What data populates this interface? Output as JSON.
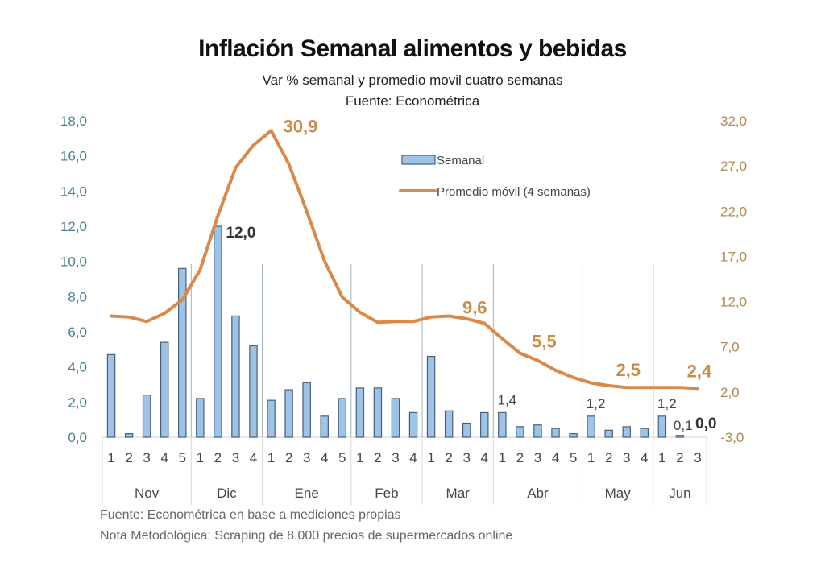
{
  "chart_data": {
    "type": "bar",
    "title": "Inflación Semanal alimentos y bebidas",
    "subtitle": "Var % semanal y promedio movil cuatro semanas",
    "source_line": "Fuente: Econométrica",
    "xlabel": "",
    "ylabel": "",
    "months": [
      {
        "name": "Nov",
        "weeks": [
          "1",
          "2",
          "3",
          "4",
          "5"
        ]
      },
      {
        "name": "Dic",
        "weeks": [
          "1",
          "2",
          "3",
          "4"
        ]
      },
      {
        "name": "Ene",
        "weeks": [
          "1",
          "2",
          "3",
          "4",
          "5"
        ]
      },
      {
        "name": "Feb",
        "weeks": [
          "1",
          "2",
          "3",
          "4"
        ]
      },
      {
        "name": "Mar",
        "weeks": [
          "1",
          "2",
          "3",
          "4"
        ]
      },
      {
        "name": "Abr",
        "weeks": [
          "1",
          "2",
          "3",
          "4",
          "5"
        ]
      },
      {
        "name": "May",
        "weeks": [
          "1",
          "2",
          "3",
          "4"
        ]
      },
      {
        "name": "Jun",
        "weeks": [
          "1",
          "2",
          "3"
        ]
      }
    ],
    "series": [
      {
        "name": "Semanal",
        "kind": "bar",
        "axis": "left",
        "color": "#9dc3e6",
        "edge_color": "#4a5f7a",
        "values": [
          4.7,
          0.2,
          2.4,
          5.4,
          9.6,
          2.2,
          12.0,
          6.9,
          5.2,
          2.1,
          2.7,
          3.1,
          1.2,
          2.2,
          2.8,
          2.8,
          2.2,
          1.4,
          4.6,
          1.5,
          0.8,
          1.4,
          1.4,
          0.6,
          0.7,
          0.5,
          0.2,
          1.2,
          0.4,
          0.6,
          0.5,
          1.2,
          0.1,
          0.0
        ]
      },
      {
        "name": "Promedio móvil (4 semanas)",
        "kind": "line",
        "axis": "right",
        "color": "#d9894a",
        "values": [
          10.4,
          10.3,
          9.8,
          10.7,
          12.2,
          15.5,
          21.5,
          26.8,
          29.3,
          30.9,
          27.2,
          22.0,
          16.5,
          12.5,
          10.8,
          9.7,
          9.8,
          9.8,
          10.3,
          10.4,
          10.1,
          9.6,
          7.9,
          6.3,
          5.5,
          4.4,
          3.6,
          3.0,
          2.7,
          2.5,
          2.5,
          2.5,
          2.5,
          2.4
        ]
      }
    ],
    "y_left": {
      "min": 0,
      "max": 18,
      "ticks": [
        "0,0",
        "2,0",
        "4,0",
        "6,0",
        "8,0",
        "10,0",
        "12,0",
        "14,0",
        "16,0",
        "18,0"
      ],
      "color": "#4a7f8f"
    },
    "y_right": {
      "min": -3,
      "max": 32,
      "ticks": [
        "-3,0",
        "2,0",
        "7,0",
        "12,0",
        "17,0",
        "22,0",
        "27,0",
        "32,0"
      ],
      "color": "#b08a50"
    },
    "bar_labels": [
      {
        "index": 6,
        "text": "12,0",
        "style": "dark"
      },
      {
        "index": 22,
        "text": "1,4",
        "style": "plain"
      },
      {
        "index": 27,
        "text": "1,2",
        "style": "plain"
      },
      {
        "index": 31,
        "text": "1,2",
        "style": "plain"
      },
      {
        "index": 32,
        "text": "0,1",
        "style": "plain"
      },
      {
        "index": 33,
        "text": "0,0",
        "style": "dark"
      }
    ],
    "line_labels": [
      {
        "index": 9,
        "text": "30,9"
      },
      {
        "index": 21,
        "text": "9,6"
      },
      {
        "index": 24,
        "text": "5,5"
      },
      {
        "index": 29,
        "text": "2,5"
      },
      {
        "index": 33,
        "text": "2,4"
      }
    ],
    "legend": {
      "placement": "top-center",
      "items": [
        {
          "label": "Semanal",
          "kind": "bar"
        },
        {
          "label": "Promedio móvil (4 semanas)",
          "kind": "line"
        }
      ]
    },
    "grid": false
  },
  "footnotes": {
    "source": "Fuente:  Econométrica en base a mediciones propias",
    "note": "Nota Metodológica: Scraping de 8.000 precios de supermercados online"
  }
}
